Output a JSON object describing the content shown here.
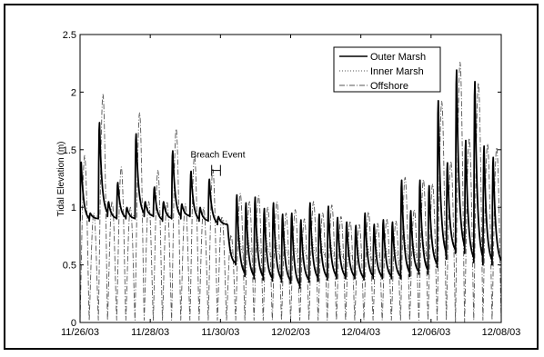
{
  "chart_data": {
    "type": "line",
    "title": "",
    "xlabel": "",
    "ylabel": "Tidal Elevation (m)",
    "xlim": [
      "11/26/03",
      "12/08/03"
    ],
    "ylim": [
      0,
      2.5
    ],
    "x_ticks": [
      "11/26/03",
      "11/28/03",
      "11/30/03",
      "12/02/03",
      "12/04/03",
      "12/06/03",
      "12/08/03"
    ],
    "y_ticks": [
      "0",
      "0.5",
      "1",
      "1.5",
      "2",
      "2.5"
    ],
    "grid": false,
    "legend_position": "top-right",
    "annotation": {
      "text": "Breach Event",
      "start": "11/29/03 18:00",
      "end": "11/30/03 00:00",
      "y": 1.32
    },
    "series": [
      {
        "name": "Outer Marsh",
        "style": "solid",
        "color": "#000000",
        "semidiurnal_tide_peaks_m": [
          1.4,
          0.95,
          1.75,
          1.05,
          1.22,
          1.0,
          1.65,
          1.05,
          1.18,
          1.05,
          1.5,
          1.03,
          1.32,
          1.0,
          1.25,
          0.92,
          0.85,
          1.12,
          1.05,
          1.1,
          1.0,
          1.05,
          0.95,
          0.96,
          0.9,
          1.05,
          0.95,
          1.02,
          0.92,
          0.88,
          0.85,
          0.96,
          0.86,
          0.9,
          0.88,
          1.25,
          0.98,
          1.25,
          1.2,
          1.95,
          1.4,
          2.22,
          1.6,
          2.12,
          1.55,
          1.45
        ],
        "low_tide_m": [
          0.88,
          0.9,
          0.92,
          0.9,
          0.9,
          0.9,
          0.92,
          0.92,
          0.88,
          0.9,
          0.9,
          0.92,
          0.88,
          0.88,
          0.85,
          0.85,
          0.5,
          0.4,
          0.38,
          0.37,
          0.36,
          0.35,
          0.34,
          0.3,
          0.35,
          0.36,
          0.37,
          0.38,
          0.38,
          0.38,
          0.37,
          0.38,
          0.38,
          0.38,
          0.38,
          0.4,
          0.42,
          0.42,
          0.48,
          0.55,
          0.6,
          0.6,
          0.52,
          0.5,
          0.5,
          0.5
        ]
      },
      {
        "name": "Inner Marsh",
        "style": "dotted",
        "color": "#555555",
        "semidiurnal_tide_peaks_m": [
          1.38,
          0.95,
          1.72,
          1.05,
          1.2,
          1.0,
          1.62,
          1.05,
          1.16,
          1.05,
          1.48,
          1.03,
          1.3,
          1.0,
          1.22,
          0.92,
          0.85,
          1.1,
          1.03,
          1.08,
          1.0,
          1.03,
          0.95,
          0.94,
          0.9,
          1.03,
          0.95,
          1.0,
          0.92,
          0.88,
          0.85,
          0.94,
          0.86,
          0.88,
          0.88,
          1.22,
          0.98,
          1.22,
          1.18,
          1.92,
          1.38,
          2.18,
          1.58,
          2.1,
          1.53,
          1.43
        ],
        "low_tide_m": [
          0.9,
          0.92,
          0.93,
          0.92,
          0.92,
          0.92,
          0.93,
          0.93,
          0.9,
          0.92,
          0.92,
          0.93,
          0.9,
          0.9,
          0.88,
          0.88,
          0.55,
          0.55,
          0.54,
          0.54,
          0.54,
          0.54,
          0.53,
          0.53,
          0.53,
          0.53,
          0.53,
          0.52,
          0.52,
          0.52,
          0.52,
          0.52,
          0.52,
          0.52,
          0.52,
          0.52,
          0.52,
          0.52,
          0.52,
          0.55,
          0.6,
          0.6,
          0.52,
          0.5,
          0.5,
          0.5
        ]
      },
      {
        "name": "Offshore",
        "style": "dashdot",
        "color": "#555555",
        "semidiurnal_tide_peaks_m": [
          1.45,
          0.95,
          1.98,
          1.05,
          1.35,
          1.0,
          1.82,
          1.05,
          1.32,
          1.05,
          1.68,
          1.03,
          1.45,
          1.0,
          1.33,
          0.92,
          0.76,
          1.12,
          1.05,
          1.1,
          1.0,
          1.05,
          0.95,
          0.98,
          0.9,
          1.05,
          0.95,
          1.02,
          0.92,
          0.88,
          0.85,
          0.96,
          0.86,
          0.9,
          0.88,
          1.26,
          0.98,
          1.24,
          1.2,
          1.92,
          1.4,
          2.26,
          1.6,
          2.08,
          1.55,
          1.52
        ],
        "low_tide_m": [
          0.02,
          0.02,
          0.02,
          0.02,
          0.02,
          0.02,
          0.02,
          0.02,
          0.02,
          0.02,
          0.02,
          0.02,
          0.02,
          0.02,
          0.02,
          0.02,
          0.02,
          0.02,
          0.02,
          0.02,
          0.02,
          0.02,
          0.02,
          0.02,
          0.02,
          0.02,
          0.02,
          0.02,
          0.02,
          0.02,
          0.02,
          0.02,
          0.02,
          0.02,
          0.02,
          0.02,
          0.02,
          0.02,
          0.02,
          0.02,
          0.02,
          0.0,
          0.02,
          0.02,
          0.02,
          0.02
        ]
      }
    ]
  }
}
